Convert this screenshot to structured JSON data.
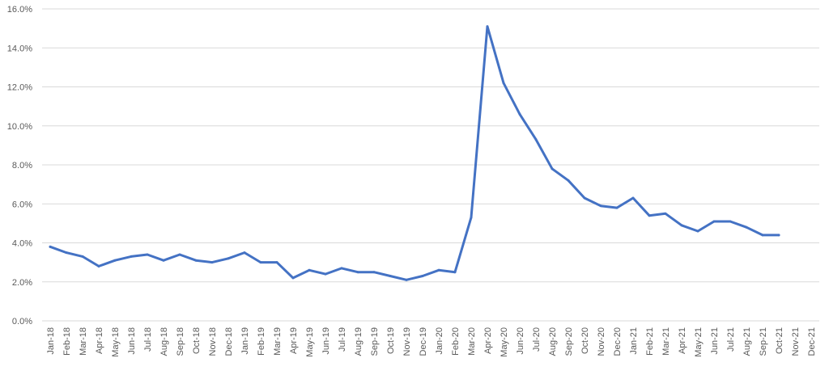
{
  "chart_data": {
    "type": "line",
    "title": "",
    "xlabel": "",
    "ylabel": "",
    "ylim": [
      0,
      16
    ],
    "y_tick_labels": [
      "0.0%",
      "2.0%",
      "4.0%",
      "6.0%",
      "8.0%",
      "10.0%",
      "12.0%",
      "14.0%",
      "16.0%"
    ],
    "grid": "horizontal",
    "legend": "none",
    "line_color": "#4472C4",
    "categories": [
      "Jan-18",
      "Feb-18",
      "Mar-18",
      "Apr-18",
      "May-18",
      "Jun-18",
      "Jul-18",
      "Aug-18",
      "Sep-18",
      "Oct-18",
      "Nov-18",
      "Dec-18",
      "Jan-19",
      "Feb-19",
      "Mar-19",
      "Apr-19",
      "May-19",
      "Jun-19",
      "Jul-19",
      "Aug-19",
      "Sep-19",
      "Oct-19",
      "Nov-19",
      "Dec-19",
      "Jan-20",
      "Feb-20",
      "Mar-20",
      "Apr-20",
      "May-20",
      "Jun-20",
      "Jul-20",
      "Aug-20",
      "Sep-20",
      "Oct-20",
      "Nov-20",
      "Dec-20",
      "Jan-21",
      "Feb-21",
      "Mar-21",
      "Apr-21",
      "May-21",
      "Jun-21",
      "Jul-21",
      "Aug-21",
      "Sep-21",
      "Oct-21",
      "Nov-21",
      "Dec-21"
    ],
    "values": [
      3.8,
      3.5,
      3.3,
      2.8,
      3.1,
      3.3,
      3.4,
      3.1,
      3.4,
      3.1,
      3.0,
      3.2,
      3.5,
      3.0,
      3.0,
      2.2,
      2.6,
      2.4,
      2.7,
      2.5,
      2.5,
      2.3,
      2.1,
      2.3,
      2.6,
      2.5,
      5.3,
      15.1,
      12.2,
      10.6,
      9.3,
      7.8,
      7.2,
      6.3,
      5.9,
      5.8,
      6.3,
      5.4,
      5.5,
      4.9,
      4.6,
      5.1,
      5.1,
      4.8,
      4.4,
      4.4,
      null,
      null
    ]
  }
}
